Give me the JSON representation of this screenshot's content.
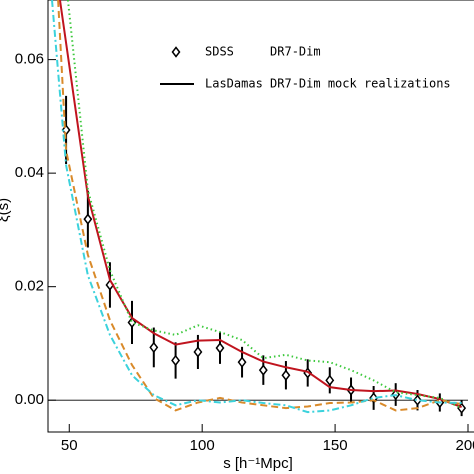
{
  "chart_data": {
    "type": "line",
    "xlabel": "s [h⁻¹Mpc]",
    "ylabel": "ξ(s)",
    "xlim": [
      42,
      200
    ],
    "ylim": [
      -0.0056,
      0.0705
    ],
    "xticks": [
      50,
      100,
      150,
      200
    ],
    "yticks": [
      {
        "value": 0,
        "label": "0.00"
      },
      {
        "value": 0.02,
        "label": "0.02"
      },
      {
        "value": 0.04,
        "label": "0.04"
      },
      {
        "value": 0.06,
        "label": "0.06"
      }
    ],
    "reference_line": 0,
    "series": [
      {
        "name": "SDSS     DR7-Dim",
        "style": "points",
        "color": "#000000",
        "x": [
          48.8,
          57,
          65.3,
          73.6,
          81.8,
          90,
          98.4,
          106.7,
          115,
          123,
          131.5,
          139.7,
          148,
          156,
          164.5,
          172.8,
          181,
          189.4,
          197.6
        ],
        "values": [
          0.0476,
          0.0319,
          0.0203,
          0.0137,
          0.0093,
          0.007,
          0.0085,
          0.0092,
          0.0067,
          0.0053,
          0.0044,
          0.0048,
          0.0035,
          0.0018,
          0.0004,
          0.001,
          0.0,
          -0.0004,
          -0.0014
        ],
        "errors": [
          0.006,
          0.005,
          0.004,
          0.0038,
          0.0035,
          0.0032,
          0.003,
          0.0028,
          0.0027,
          0.0026,
          0.0025,
          0.0024,
          0.0023,
          0.0022,
          0.0021,
          0.002,
          0.0018,
          0.0016,
          0.0014
        ]
      },
      {
        "name": "LasDamas DR7-Dim mock realizations",
        "style": "solid",
        "color": "#c0141e",
        "x": [
          46.5,
          57,
          65.3,
          73.6,
          81.8,
          90,
          98.4,
          106.7,
          115,
          123,
          131.5,
          139.7,
          148,
          156,
          164.5,
          172.8,
          181,
          189.4,
          197.6
        ],
        "values": [
          0.0705,
          0.036,
          0.0212,
          0.0145,
          0.0118,
          0.0098,
          0.0105,
          0.0106,
          0.0085,
          0.0068,
          0.0058,
          0.005,
          0.0023,
          0.0018,
          0.0016,
          0.0017,
          0.0011,
          0.0002,
          -0.0012
        ]
      },
      {
        "style": "dotted",
        "color": "#3cc83c",
        "x": [
          49.5,
          57,
          65.3,
          73.6,
          81.8,
          90,
          98.4,
          106.7,
          115,
          123,
          131.5,
          139.7,
          148,
          156,
          164.5,
          172.8,
          181,
          189.4,
          197.6
        ],
        "values": [
          0.0705,
          0.037,
          0.0229,
          0.0137,
          0.0123,
          0.0115,
          0.0132,
          0.012,
          0.0106,
          0.0074,
          0.008,
          0.007,
          0.0067,
          0.0053,
          0.0035,
          0.0014,
          0.0009,
          0.0004,
          -0.0014
        ]
      },
      {
        "style": "dashed",
        "color": "#d98a2a",
        "x": [
          45.8,
          48.8,
          57,
          65.3,
          73.6,
          81.8,
          90,
          98.4,
          106.7,
          115,
          123,
          131.5,
          139.7,
          148,
          156,
          164.5,
          172.8,
          181,
          189.4,
          197.6
        ],
        "values": [
          0.0705,
          0.044,
          0.0256,
          0.0141,
          0.0062,
          0.0004,
          -0.0018,
          -0.0004,
          0.0004,
          -0.0004,
          -0.0009,
          -0.0014,
          -0.0011,
          -0.0005,
          -0.0004,
          0.0,
          -0.0018,
          -0.0014,
          0.0,
          -0.0007
        ]
      },
      {
        "style": "dashdot",
        "color": "#3cd2dc",
        "x": [
          43.5,
          48.8,
          57,
          65.3,
          73.6,
          81.8,
          90,
          98.4,
          106.7,
          115,
          123,
          131.5,
          139.7,
          148,
          156,
          164.5,
          172.8,
          181,
          189.4,
          197.6
        ],
        "values": [
          0.0705,
          0.0414,
          0.022,
          0.0115,
          0.0044,
          0.0009,
          -0.0009,
          0.0,
          -0.0004,
          0.0,
          -0.0005,
          -0.0009,
          -0.0021,
          -0.0018,
          -0.0009,
          0.0004,
          0.0009,
          0.0,
          -0.0004,
          -0.0005
        ]
      }
    ]
  }
}
